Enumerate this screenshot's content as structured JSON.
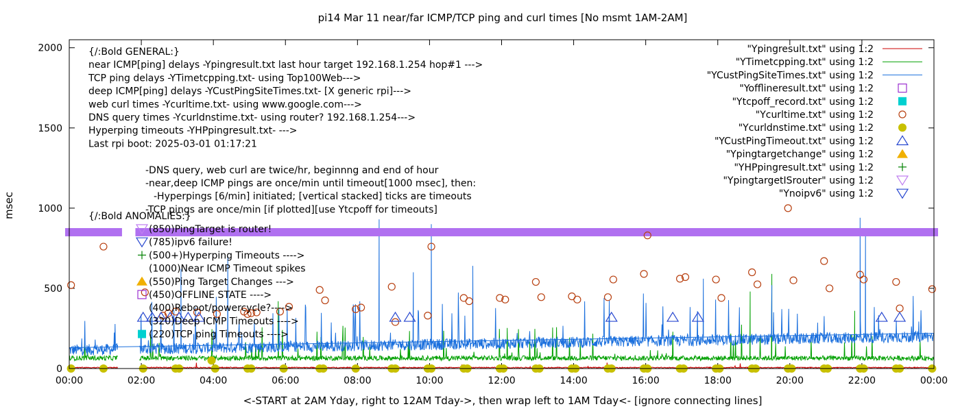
{
  "chart_data": {
    "type": "line",
    "title": "pi14 Mar 11  near/far ICMP/TCP ping and curl times [No msmt 1AM-2AM]",
    "xlabel": "<-START at 2AM Yday, right to 12AM Tday->, then wrap left to 1AM Tday<- [ignore connecting lines]",
    "ylabel": "msec",
    "xlim": [
      0,
      24
    ],
    "ylim": [
      0,
      2050
    ],
    "x_tick_labels": [
      "00:00",
      "02:00",
      "04:00",
      "06:00",
      "08:00",
      "10:00",
      "12:00",
      "14:00",
      "16:00",
      "18:00",
      "20:00",
      "22:00",
      "00:00"
    ],
    "y_ticks": [
      0,
      500,
      1000,
      1500,
      2000
    ],
    "legend_position": "top-right",
    "series": [
      {
        "name": "\"Ypingresult.txt\" using 1:2",
        "color": "#cc0000",
        "style": "line",
        "note": "near ICMP ping delays, mostly near 3-10 msec"
      },
      {
        "name": "\"YTimetcpping.txt\" using 1:2",
        "color": "#00a000",
        "style": "line",
        "note": "TCP ping delays, baseline ~50-80 msec with spikes"
      },
      {
        "name": "\"YCustPingSiteTimes.txt\" using 1:2",
        "color": "#1a6fdd",
        "style": "line",
        "note": "deep ICMP ping delays, baseline ~100-200 msec with spikes to ~900"
      },
      {
        "name": "\"Yofflineresult.txt\" using 1:2",
        "color": "#9b30d0",
        "style": "open-square",
        "points": []
      },
      {
        "name": "\"Ytcpoff_record.txt\" using 1:2",
        "color": "#00d0d0",
        "style": "filled-square",
        "points": []
      },
      {
        "name": "\"Ycurltime.txt\" using 1:2",
        "color": "#b84010",
        "style": "open-circle",
        "points": [
          [
            0.05,
            520
          ],
          [
            0.95,
            760
          ],
          [
            2.1,
            475
          ],
          [
            2.6,
            330
          ],
          [
            2.75,
            345
          ],
          [
            2.95,
            355
          ],
          [
            3.55,
            350
          ],
          [
            4.1,
            340
          ],
          [
            4.85,
            355
          ],
          [
            4.95,
            340
          ],
          [
            5.05,
            345
          ],
          [
            5.2,
            350
          ],
          [
            5.85,
            355
          ],
          [
            6.1,
            385
          ],
          [
            6.95,
            490
          ],
          [
            7.1,
            425
          ],
          [
            7.95,
            370
          ],
          [
            8.1,
            380
          ],
          [
            8.95,
            510
          ],
          [
            9.05,
            290
          ],
          [
            9.95,
            330
          ],
          [
            10.05,
            760
          ],
          [
            10.95,
            440
          ],
          [
            11.1,
            420
          ],
          [
            11.95,
            440
          ],
          [
            12.1,
            430
          ],
          [
            12.95,
            540
          ],
          [
            13.1,
            445
          ],
          [
            13.95,
            450
          ],
          [
            14.1,
            430
          ],
          [
            14.95,
            445
          ],
          [
            15.1,
            555
          ],
          [
            15.95,
            590
          ],
          [
            16.05,
            830
          ],
          [
            16.95,
            560
          ],
          [
            17.1,
            570
          ],
          [
            17.95,
            555
          ],
          [
            18.1,
            440
          ],
          [
            18.95,
            600
          ],
          [
            19.1,
            525
          ],
          [
            19.95,
            1000
          ],
          [
            20.1,
            550
          ],
          [
            20.95,
            670
          ],
          [
            21.1,
            500
          ],
          [
            21.95,
            585
          ],
          [
            22.05,
            555
          ],
          [
            22.95,
            540
          ],
          [
            23.05,
            375
          ],
          [
            23.95,
            495
          ]
        ]
      },
      {
        "name": "\"Ycurldnstime.txt\" using 1:2",
        "color": "#c8c000",
        "style": "filled-circle",
        "points": [
          [
            0.05,
            0
          ],
          [
            0.95,
            0
          ],
          [
            2.05,
            0
          ],
          [
            2.95,
            0
          ],
          [
            3.05,
            0
          ],
          [
            3.95,
            50
          ],
          [
            4.05,
            0
          ],
          [
            4.95,
            0
          ],
          [
            5.05,
            0
          ],
          [
            5.95,
            0
          ],
          [
            6.95,
            0
          ],
          [
            7.05,
            0
          ],
          [
            7.95,
            0
          ],
          [
            8.95,
            0
          ],
          [
            9.05,
            0
          ],
          [
            9.95,
            0
          ],
          [
            10.05,
            0
          ],
          [
            10.95,
            0
          ],
          [
            11.05,
            0
          ],
          [
            11.95,
            0
          ],
          [
            12.05,
            0
          ],
          [
            12.95,
            0
          ],
          [
            13.05,
            0
          ],
          [
            13.95,
            0
          ],
          [
            14.05,
            0
          ],
          [
            14.95,
            0
          ],
          [
            15.05,
            0
          ],
          [
            15.95,
            0
          ],
          [
            16.05,
            0
          ],
          [
            16.95,
            0
          ],
          [
            17.05,
            0
          ],
          [
            17.95,
            0
          ],
          [
            18.05,
            0
          ],
          [
            18.95,
            0
          ],
          [
            19.05,
            0
          ],
          [
            19.95,
            0
          ],
          [
            20.05,
            0
          ],
          [
            20.95,
            0
          ],
          [
            21.05,
            0
          ],
          [
            21.95,
            0
          ],
          [
            22.05,
            0
          ],
          [
            22.95,
            0
          ],
          [
            23.05,
            0
          ],
          [
            23.95,
            0
          ]
        ]
      },
      {
        "name": "\"YCustPingTimeout.txt\" using 1:2",
        "color": "#2848d0",
        "style": "open-triangle-up",
        "points": [
          [
            2.05,
            320
          ],
          [
            2.3,
            320
          ],
          [
            2.55,
            320
          ],
          [
            2.8,
            320
          ],
          [
            3.05,
            320
          ],
          [
            3.3,
            320
          ],
          [
            3.6,
            320
          ],
          [
            9.05,
            320
          ],
          [
            9.45,
            320
          ],
          [
            15.05,
            320
          ],
          [
            16.75,
            320
          ],
          [
            17.45,
            320
          ],
          [
            22.55,
            320
          ],
          [
            23.05,
            320
          ]
        ]
      },
      {
        "name": "\"Ypingtargetchange\" using 1:2",
        "color": "#f0b000",
        "style": "filled-triangle-up",
        "points": []
      },
      {
        "name": "\"YHPpingresult.txt\" using 1:2",
        "color": "#008000",
        "style": "plus",
        "points": []
      },
      {
        "name": "\"YpingtargetISrouter\" using 1:2",
        "color": "#c080f0",
        "style": "open-triangle-down",
        "points": [],
        "band_value": 850
      },
      {
        "name": "\"Ynoipv6\" using 1:2",
        "color": "#2848d0",
        "style": "open-triangle-down",
        "points": []
      }
    ],
    "band": {
      "value": 850,
      "color": "#b070f0",
      "gap_from": 1.35,
      "gap_to": 1.95
    },
    "annotations": {
      "general_header": "{/:Bold GENERAL:}",
      "general_lines": [
        "near ICMP[ping] delays -Ypingresult.txt last hour target 192.168.1.254 hop#1 --->",
        "TCP ping delays -YTimetcpping.txt- using Top100Web--->",
        "deep ICMP[ping] delays -YCustPingSiteTimes.txt- [X generic rpi]--->",
        "web curl times -Ycurltime.txt- using www.google.com--->",
        "DNS query times -Ycurldnstime.txt- using router? 192.168.1.254--->",
        "Hyperping timeouts -YHPpingresult.txt- --->",
        "Last rpi boot: 2025-03-01 01:17:21"
      ],
      "notes": [
        "-DNS query, web curl are twice/hr, beginnng and end of hour",
        "-near,deep ICMP pings are once/min until timeout[1000 msec], then:",
        "-Hyperpings [6/min] initiated; [vertical stacked] ticks are timeouts",
        "-TCP pings are once/min [if plotted][use Ytcpoff for timeouts]"
      ],
      "anomalies_header": "{/:Bold ANOMALIES:}",
      "anomaly_lines": [
        {
          "text": "(850)PingTarget is router!",
          "marker": "open-triangle-down",
          "color": "#c080f0"
        },
        {
          "text": "(785)ipv6 failure!",
          "marker": "open-triangle-down",
          "color": "#2848d0"
        },
        {
          "text": "(500+)Hyperping Timeouts ---->",
          "marker": "plus",
          "color": "#008000"
        },
        {
          "text": "(1000)Near ICMP Timeout spikes",
          "marker": "",
          "color": ""
        },
        {
          "text": "(550)Ping Target Changes --->",
          "marker": "filled-triangle-up",
          "color": "#f0b000"
        },
        {
          "text": "(450)OFFLINE STATE ---->",
          "marker": "open-square",
          "color": "#9b30d0"
        },
        {
          "text": "(400)Reboot/powercycle?---->",
          "marker": "",
          "color": ""
        },
        {
          "text": "(320)Deep ICMP Timeouts ---->",
          "marker": "",
          "color": ""
        },
        {
          "text": "(220)TCP ping Timeouts ---->",
          "marker": "filled-square",
          "color": "#00d0d0"
        }
      ]
    }
  }
}
